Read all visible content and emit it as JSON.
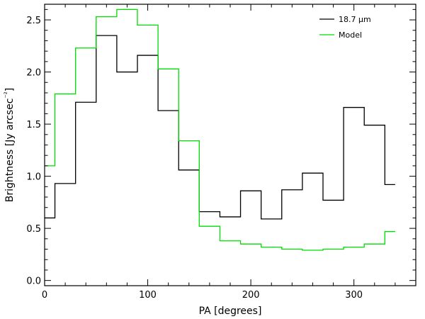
{
  "chart_data": {
    "type": "line",
    "style": "step",
    "xlabel": "PA [degrees]",
    "ylabel": "Brightness [Jy arcsec⁻²]",
    "xlim": [
      0,
      360
    ],
    "ylim": [
      -0.05,
      2.65
    ],
    "xticks": [
      0,
      100,
      200,
      300
    ],
    "yticks": [
      0.0,
      0.5,
      1.0,
      1.5,
      2.0,
      2.5
    ],
    "xtick_labels": [
      "0",
      "100",
      "200",
      "300"
    ],
    "ytick_labels": [
      "0.0",
      "0.5",
      "1.0",
      "1.5",
      "2.0",
      "2.5"
    ],
    "grid": false,
    "legend_position": "top-right",
    "series": [
      {
        "name": "18.7 μm",
        "color": "#000000",
        "x": [
          0,
          10,
          30,
          50,
          70,
          90,
          110,
          130,
          150,
          170,
          190,
          210,
          230,
          250,
          270,
          290,
          310,
          330,
          340
        ],
        "y": [
          0.6,
          0.93,
          1.71,
          2.35,
          2.0,
          2.16,
          1.63,
          1.06,
          0.66,
          0.61,
          0.86,
          0.59,
          0.87,
          1.03,
          0.77,
          1.66,
          1.49,
          0.92,
          0.92
        ]
      },
      {
        "name": "Model",
        "color": "#00dd00",
        "x": [
          0,
          10,
          30,
          50,
          70,
          90,
          110,
          130,
          150,
          170,
          190,
          210,
          230,
          250,
          270,
          290,
          310,
          330,
          340
        ],
        "y": [
          1.1,
          1.79,
          2.23,
          2.53,
          2.6,
          2.45,
          2.03,
          1.34,
          0.52,
          0.38,
          0.35,
          0.32,
          0.3,
          0.29,
          0.3,
          0.32,
          0.35,
          0.47,
          0.47
        ]
      }
    ]
  }
}
